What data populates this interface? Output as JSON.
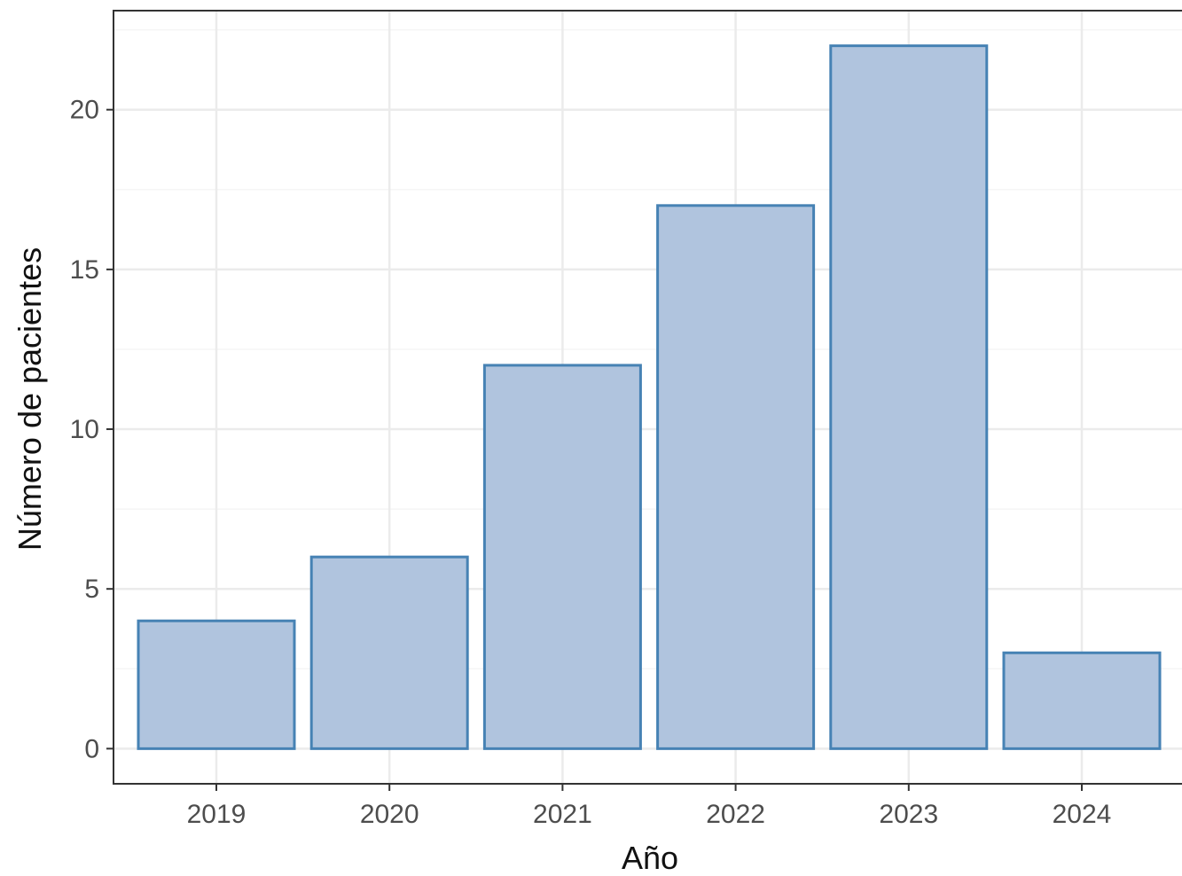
{
  "chart_data": {
    "type": "bar",
    "categories": [
      "2019",
      "2020",
      "2021",
      "2022",
      "2023",
      "2024"
    ],
    "values": [
      4,
      6,
      12,
      17,
      22,
      3
    ],
    "title": "",
    "xlabel": "Año",
    "ylabel": "Número de pacientes",
    "ylim": [
      -1.1,
      23.1
    ],
    "yticks": [
      0,
      5,
      10,
      15,
      20
    ],
    "ytick_labels": [
      "0",
      "5",
      "10",
      "15",
      "20"
    ],
    "grid": true,
    "legend": "none",
    "colors": {
      "bar_fill": "#b0c4de",
      "bar_stroke": "#4682b4",
      "grid_major": "#ebebeb",
      "grid_minor": "#f5f5f5",
      "panel_border": "#333333"
    }
  }
}
